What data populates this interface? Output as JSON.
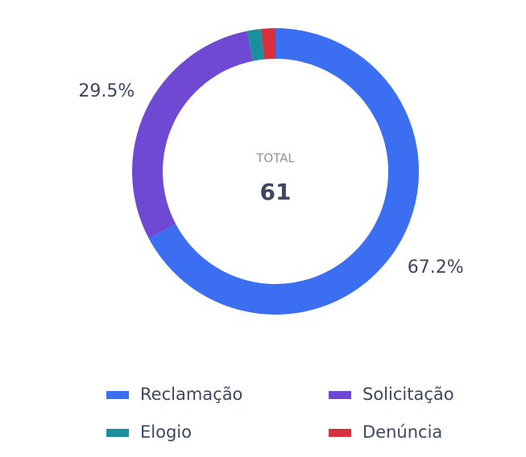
{
  "chart_data": {
    "type": "donut",
    "categories": [
      "Reclamação",
      "Solicitação",
      "Elogio",
      "Denúncia"
    ],
    "values": [
      67.2,
      29.5,
      1.6,
      1.6
    ],
    "value_labels": [
      "67.2%",
      "29.5%",
      null,
      null
    ],
    "colors": [
      "#3b6ef0",
      "#6f48d4",
      "#1a8fa0",
      "#d8303c"
    ],
    "center_label": "TOTAL",
    "total": 61,
    "legend": "bottom"
  }
}
